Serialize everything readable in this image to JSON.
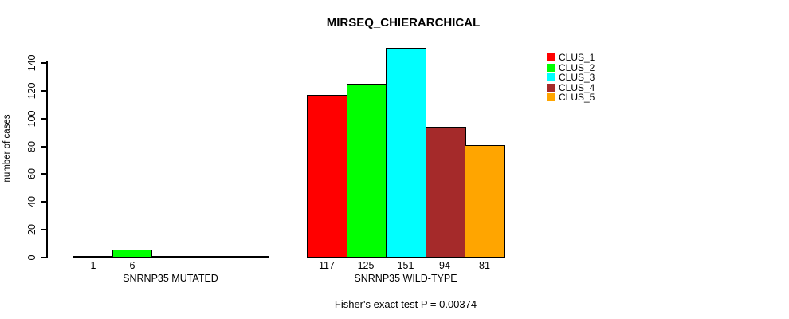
{
  "chart_data": {
    "type": "bar",
    "title": "MIRSEQ_CHIERARCHICAL",
    "subtitle": "Fisher's exact test P = 0.00374",
    "ylabel": "number of cases",
    "xlabel": "",
    "ylim": [
      0,
      151
    ],
    "yticks": [
      0,
      20,
      40,
      60,
      80,
      100,
      120,
      140
    ],
    "grid": false,
    "legend_position": "top-right",
    "series": [
      {
        "name": "CLUS_1",
        "color": "#FF0000",
        "values": [
          1,
          117
        ]
      },
      {
        "name": "CLUS_2",
        "color": "#00FF00",
        "values": [
          6,
          125
        ]
      },
      {
        "name": "CLUS_3",
        "color": "#00FFFF",
        "values": [
          0,
          151
        ]
      },
      {
        "name": "CLUS_4",
        "color": "#A52A2A",
        "values": [
          0,
          94
        ]
      },
      {
        "name": "CLUS_5",
        "color": "#FFA500",
        "values": [
          0,
          81
        ]
      }
    ],
    "groups": [
      {
        "label": "SNRNP35 MUTATED",
        "values": [
          1,
          6,
          0,
          0,
          0
        ],
        "bar_labels": [
          "1",
          "6",
          "",
          "",
          ""
        ]
      },
      {
        "label": "SNRNP35 WILD-TYPE",
        "values": [
          117,
          125,
          151,
          94,
          81
        ],
        "bar_labels": [
          "117",
          "125",
          "151",
          "94",
          "81"
        ]
      }
    ],
    "axis_color": "#000000",
    "background_color": "#FFFFFF"
  }
}
